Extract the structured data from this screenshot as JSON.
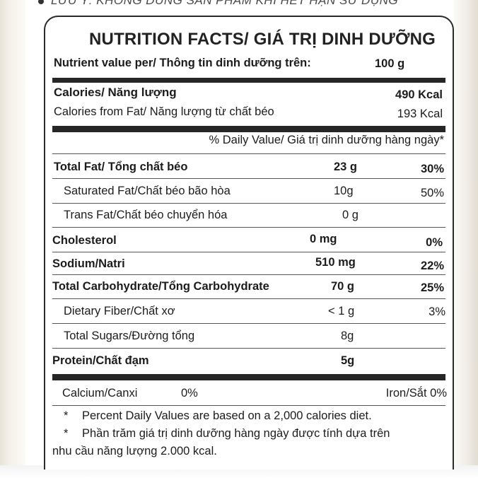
{
  "top_note": "LƯU Ý: KHÔNG DÙNG SẢN PHẨM KHI HẾT HẠN SỬ DỤNG",
  "title": "NUTRITION FACTS/ GIÁ TRỊ DINH DƯỠNG",
  "serving": {
    "label": "Nutrient value per/ Thông tin dinh dưỡng trên:",
    "value": "100 g"
  },
  "calories": {
    "label": "Calories/ Năng lượng",
    "value": "490 Kcal"
  },
  "calories_fat": {
    "label": "Calories from Fat/ Năng lượng từ chất béo",
    "value": "193 Kcal"
  },
  "daily_value_header": "% Daily Value/ Giá trị dinh dưỡng hàng ngày*",
  "nutrients": [
    {
      "label": "Total Fat/ Tổng chất béo",
      "amount": "23 g",
      "percent": "30%"
    },
    {
      "label": "Saturated Fat/Chất béo bão hòa",
      "amount": "10g",
      "percent": "50%"
    },
    {
      "label": "Trans Fat/Chất béo chuyển hóa",
      "amount": "0 g",
      "percent": ""
    },
    {
      "label": "Cholesterol",
      "amount": "0 mg",
      "percent": "0%"
    },
    {
      "label": "Sodium/Natri",
      "amount": "510 mg",
      "percent": "22%"
    },
    {
      "label": "Total Carbohydrate/Tổng Carbohydrate",
      "amount": "70 g",
      "percent": "25%"
    },
    {
      "label": "Dietary Fiber/Chất xơ",
      "amount": "< 1 g",
      "percent": "3%"
    },
    {
      "label": "Total Sugars/Đường tổng",
      "amount": "8g",
      "percent": ""
    },
    {
      "label": "Protein/Chất đạm",
      "amount": "5g",
      "percent": ""
    }
  ],
  "minerals": {
    "calcium_label": "Calcium/Canxi",
    "calcium_value": "0%",
    "iron": "Iron/Sắt 0%"
  },
  "footnotes": {
    "star": "*",
    "en": "Percent Daily Values are based on a 2,000 calories diet.",
    "vi_line1": "Phần trăm giá trị dinh dưỡng hàng ngày được tính dựa trên",
    "vi_line2": "nhu cầu năng lượng 2.000 kcal."
  }
}
